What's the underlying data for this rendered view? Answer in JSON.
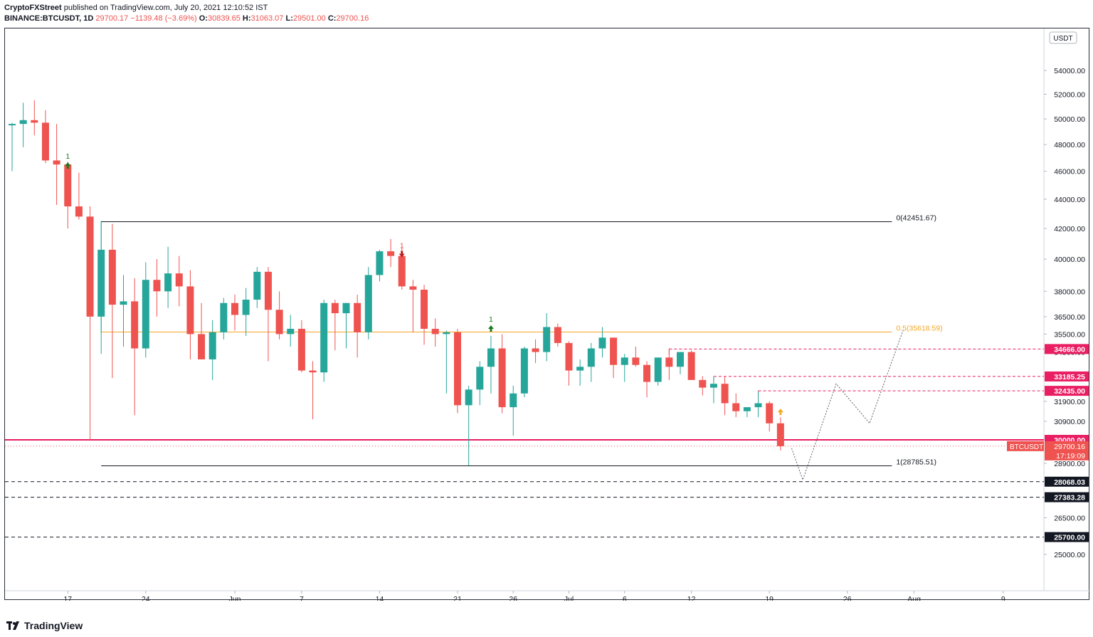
{
  "header": {
    "publisher": "CryptoFXStreet",
    "published_text": "published on TradingView.com, July 20, 2021 12:10:52 IST",
    "symbol": "BINANCE:BTCUSDT, 1D",
    "last": "29700.17",
    "change": "−1139.48 (−3.69%)",
    "open_label": "O:",
    "open": "30839.65",
    "high_label": "H:",
    "high": "31063.07",
    "low_label": "L:",
    "low": "29501.00",
    "close_label": "C:",
    "close": "29700.16"
  },
  "footer": {
    "brand": "TradingView"
  },
  "colors": {
    "up": "#26a69a",
    "down": "#ef5350",
    "fib_mid": "#f5a623",
    "support_line": "#e91e63",
    "resistance_dash": "#e91e63",
    "black_level": "#131722"
  },
  "chart_data": {
    "type": "candlestick",
    "symbol": "BTCUSDT",
    "timeframe": "1D",
    "currency_label": "USDT",
    "x_start_date": "2021-05-12",
    "x_range": [
      "2021-05-11",
      "2021-08-14"
    ],
    "y_axis_scale": "log",
    "y_range": [
      24000,
      56000
    ],
    "y_ticks": [
      25000,
      26500,
      28900,
      30900,
      31900,
      34500,
      35500,
      36500,
      38000,
      40000,
      42000,
      44000,
      46000,
      48000,
      50000,
      52000,
      54000
    ],
    "x_ticks": [
      {
        "label": "17",
        "date": "2021-05-17"
      },
      {
        "label": "24",
        "date": "2021-05-24"
      },
      {
        "label": "Jun",
        "date": "2021-06-01"
      },
      {
        "label": "7",
        "date": "2021-06-07"
      },
      {
        "label": "14",
        "date": "2021-06-14"
      },
      {
        "label": "21",
        "date": "2021-06-21"
      },
      {
        "label": "26",
        "date": "2021-06-26"
      },
      {
        "label": "Jul",
        "date": "2021-07-01"
      },
      {
        "label": "6",
        "date": "2021-07-06"
      },
      {
        "label": "12",
        "date": "2021-07-12"
      },
      {
        "label": "19",
        "date": "2021-07-19"
      },
      {
        "label": "26",
        "date": "2021-07-26"
      },
      {
        "label": "Aug",
        "date": "2021-08-01"
      },
      {
        "label": "9",
        "date": "2021-08-09"
      }
    ],
    "candles": [
      [
        49500,
        49700,
        46000,
        49600
      ],
      [
        49600,
        51300,
        47800,
        49900
      ],
      [
        49900,
        51500,
        48700,
        49700
      ],
      [
        49700,
        50700,
        46600,
        46800
      ],
      [
        46800,
        49600,
        43600,
        46500
      ],
      [
        46500,
        46700,
        42000,
        43500
      ],
      [
        43500,
        45900,
        42600,
        42800
      ],
      [
        42800,
        43500,
        30000,
        36500
      ],
      [
        36500,
        42500,
        34400,
        40600
      ],
      [
        40600,
        42300,
        33100,
        37200
      ],
      [
        37200,
        39000,
        34800,
        37400
      ],
      [
        37400,
        38800,
        31200,
        34700
      ],
      [
        34700,
        39800,
        34200,
        38700
      ],
      [
        38700,
        40000,
        36500,
        38000
      ],
      [
        38000,
        40800,
        37000,
        39100
      ],
      [
        39100,
        40200,
        37100,
        38300
      ],
      [
        38300,
        39300,
        34100,
        35500
      ],
      [
        35500,
        37300,
        34200,
        34100
      ],
      [
        34100,
        36300,
        33000,
        35600
      ],
      [
        35600,
        37600,
        35200,
        37300
      ],
      [
        37300,
        37800,
        35700,
        36600
      ],
      [
        36600,
        38200,
        35400,
        37500
      ],
      [
        37500,
        39500,
        37000,
        39200
      ],
      [
        39200,
        39500,
        34000,
        36900
      ],
      [
        36900,
        38000,
        35200,
        35500
      ],
      [
        35500,
        36600,
        34800,
        35800
      ],
      [
        35800,
        36300,
        33400,
        33500
      ],
      [
        33500,
        34000,
        31000,
        33400
      ],
      [
        33400,
        37500,
        32900,
        37300
      ],
      [
        37300,
        37500,
        34600,
        36700
      ],
      [
        36700,
        37300,
        34700,
        37300
      ],
      [
        37300,
        37800,
        34200,
        35600
      ],
      [
        35600,
        39500,
        35200,
        39000
      ],
      [
        39000,
        40600,
        38600,
        40500
      ],
      [
        40500,
        41300,
        39500,
        40200
      ],
      [
        40200,
        40800,
        38100,
        38300
      ],
      [
        38300,
        38700,
        35600,
        38100
      ],
      [
        38100,
        38400,
        34900,
        35800
      ],
      [
        35800,
        36400,
        34800,
        35500
      ],
      [
        35500,
        35700,
        32300,
        35600
      ],
      [
        35600,
        35800,
        31300,
        31700
      ],
      [
        31700,
        32700,
        28800,
        32500
      ],
      [
        32500,
        34000,
        31700,
        33700
      ],
      [
        33700,
        35400,
        32300,
        34700
      ],
      [
        34700,
        35500,
        31300,
        31600
      ],
      [
        31600,
        32700,
        30200,
        32300
      ],
      [
        32300,
        34800,
        32100,
        34700
      ],
      [
        34700,
        35200,
        33900,
        34500
      ],
      [
        34500,
        36700,
        34000,
        35900
      ],
      [
        35900,
        36100,
        34800,
        35000
      ],
      [
        35000,
        35100,
        32700,
        33500
      ],
      [
        33500,
        34100,
        32700,
        33700
      ],
      [
        33700,
        35000,
        32900,
        34700
      ],
      [
        34700,
        35900,
        34200,
        35300
      ],
      [
        35300,
        35300,
        33100,
        33800
      ],
      [
        33800,
        34400,
        32900,
        34200
      ],
      [
        34200,
        34800,
        33700,
        33800
      ],
      [
        33800,
        34000,
        32100,
        32900
      ],
      [
        32900,
        34100,
        32700,
        34200
      ],
      [
        34200,
        34700,
        33000,
        33700
      ],
      [
        33700,
        34500,
        33300,
        34500
      ],
      [
        34500,
        34600,
        33000,
        33000
      ],
      [
        33000,
        33200,
        32200,
        32600
      ],
      [
        32600,
        33200,
        31800,
        32800
      ],
      [
        32800,
        33200,
        31200,
        31800
      ],
      [
        31800,
        32300,
        31100,
        31400
      ],
      [
        31400,
        31600,
        31100,
        31600
      ],
      [
        31600,
        32400,
        31100,
        31800
      ],
      [
        31800,
        31900,
        30400,
        30800
      ],
      [
        30800,
        31100,
        29500,
        29700
      ]
    ],
    "fib_levels": [
      {
        "label": "0(42451.67)",
        "value": 42451.67,
        "from": "2021-05-20",
        "to": "2021-07-30"
      },
      {
        "label": "0.5(35618.59)",
        "value": 35618.59,
        "from": "2021-05-20",
        "to": "2021-07-30"
      },
      {
        "label": "1(28785.51)",
        "value": 28785.51,
        "from": "2021-05-20",
        "to": "2021-07-30"
      }
    ],
    "horizontal_lines": [
      {
        "value": 30000.0,
        "label": "30000.00",
        "style": "solid"
      },
      {
        "value": 34666.0,
        "label": "34666.00",
        "style": "dashed",
        "from": "2021-07-10"
      },
      {
        "value": 33185.25,
        "label": "33185.25",
        "style": "dashed",
        "from": "2021-07-14"
      },
      {
        "value": 32435.0,
        "label": "32435.00",
        "style": "dashed",
        "from": "2021-07-18"
      },
      {
        "value": 28068.03,
        "label": "28068.03",
        "style": "dashed"
      },
      {
        "value": 27383.28,
        "label": "27383.28",
        "style": "dashed"
      },
      {
        "value": 25700.0,
        "label": "25700.00",
        "style": "dashed"
      }
    ],
    "projection_path": [
      {
        "date": "2021-07-21",
        "price": 29600
      },
      {
        "date": "2021-07-22",
        "price": 28150
      },
      {
        "date": "2021-07-25",
        "price": 32800
      },
      {
        "date": "2021-07-28",
        "price": 30800
      },
      {
        "date": "2021-07-31",
        "price": 35700
      }
    ],
    "markers": [
      {
        "date": "2021-05-17",
        "price": 46400,
        "label": "1",
        "dir": "up"
      },
      {
        "date": "2021-06-16",
        "price": 40300,
        "label": "1",
        "dir": "down"
      },
      {
        "date": "2021-06-24",
        "price": 35800,
        "label": "1",
        "dir": "up"
      },
      {
        "date": "2021-07-20",
        "price": 31350,
        "label": "",
        "dir": "up"
      }
    ],
    "last_price_label": "BTCUSDT",
    "last_price": "29700.16",
    "countdown": "17:19:09"
  }
}
